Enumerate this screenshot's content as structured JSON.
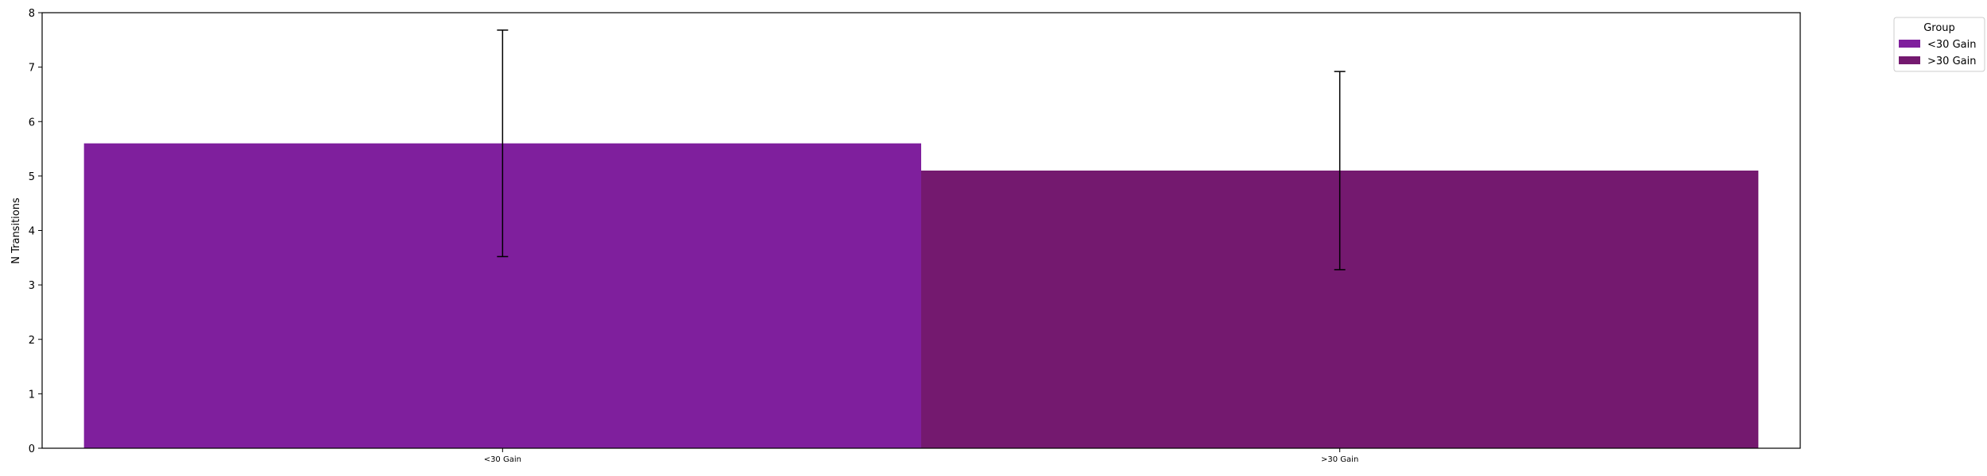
{
  "chart_data": {
    "type": "bar",
    "title": "",
    "xlabel": "",
    "ylabel": "N Transitions",
    "ylim": [
      0,
      8
    ],
    "yticks": [
      0,
      1,
      2,
      3,
      4,
      5,
      6,
      7,
      8
    ],
    "categories": [
      "<30 Gain",
      ">30 Gain"
    ],
    "series": [
      {
        "name": "<30 Gain",
        "category": "<30 Gain",
        "value": 5.6,
        "error_low": 3.52,
        "error_high": 7.68,
        "color": "#7f1f9d"
      },
      {
        "name": ">30 Gain",
        "category": ">30 Gain",
        "value": 5.1,
        "error_low": 3.28,
        "error_high": 6.92,
        "color": "#74196f"
      }
    ],
    "legend": {
      "title": "Group",
      "placement": "outside-top-right",
      "entries": [
        "<30 Gain",
        ">30 Gain"
      ]
    },
    "grid": false
  }
}
